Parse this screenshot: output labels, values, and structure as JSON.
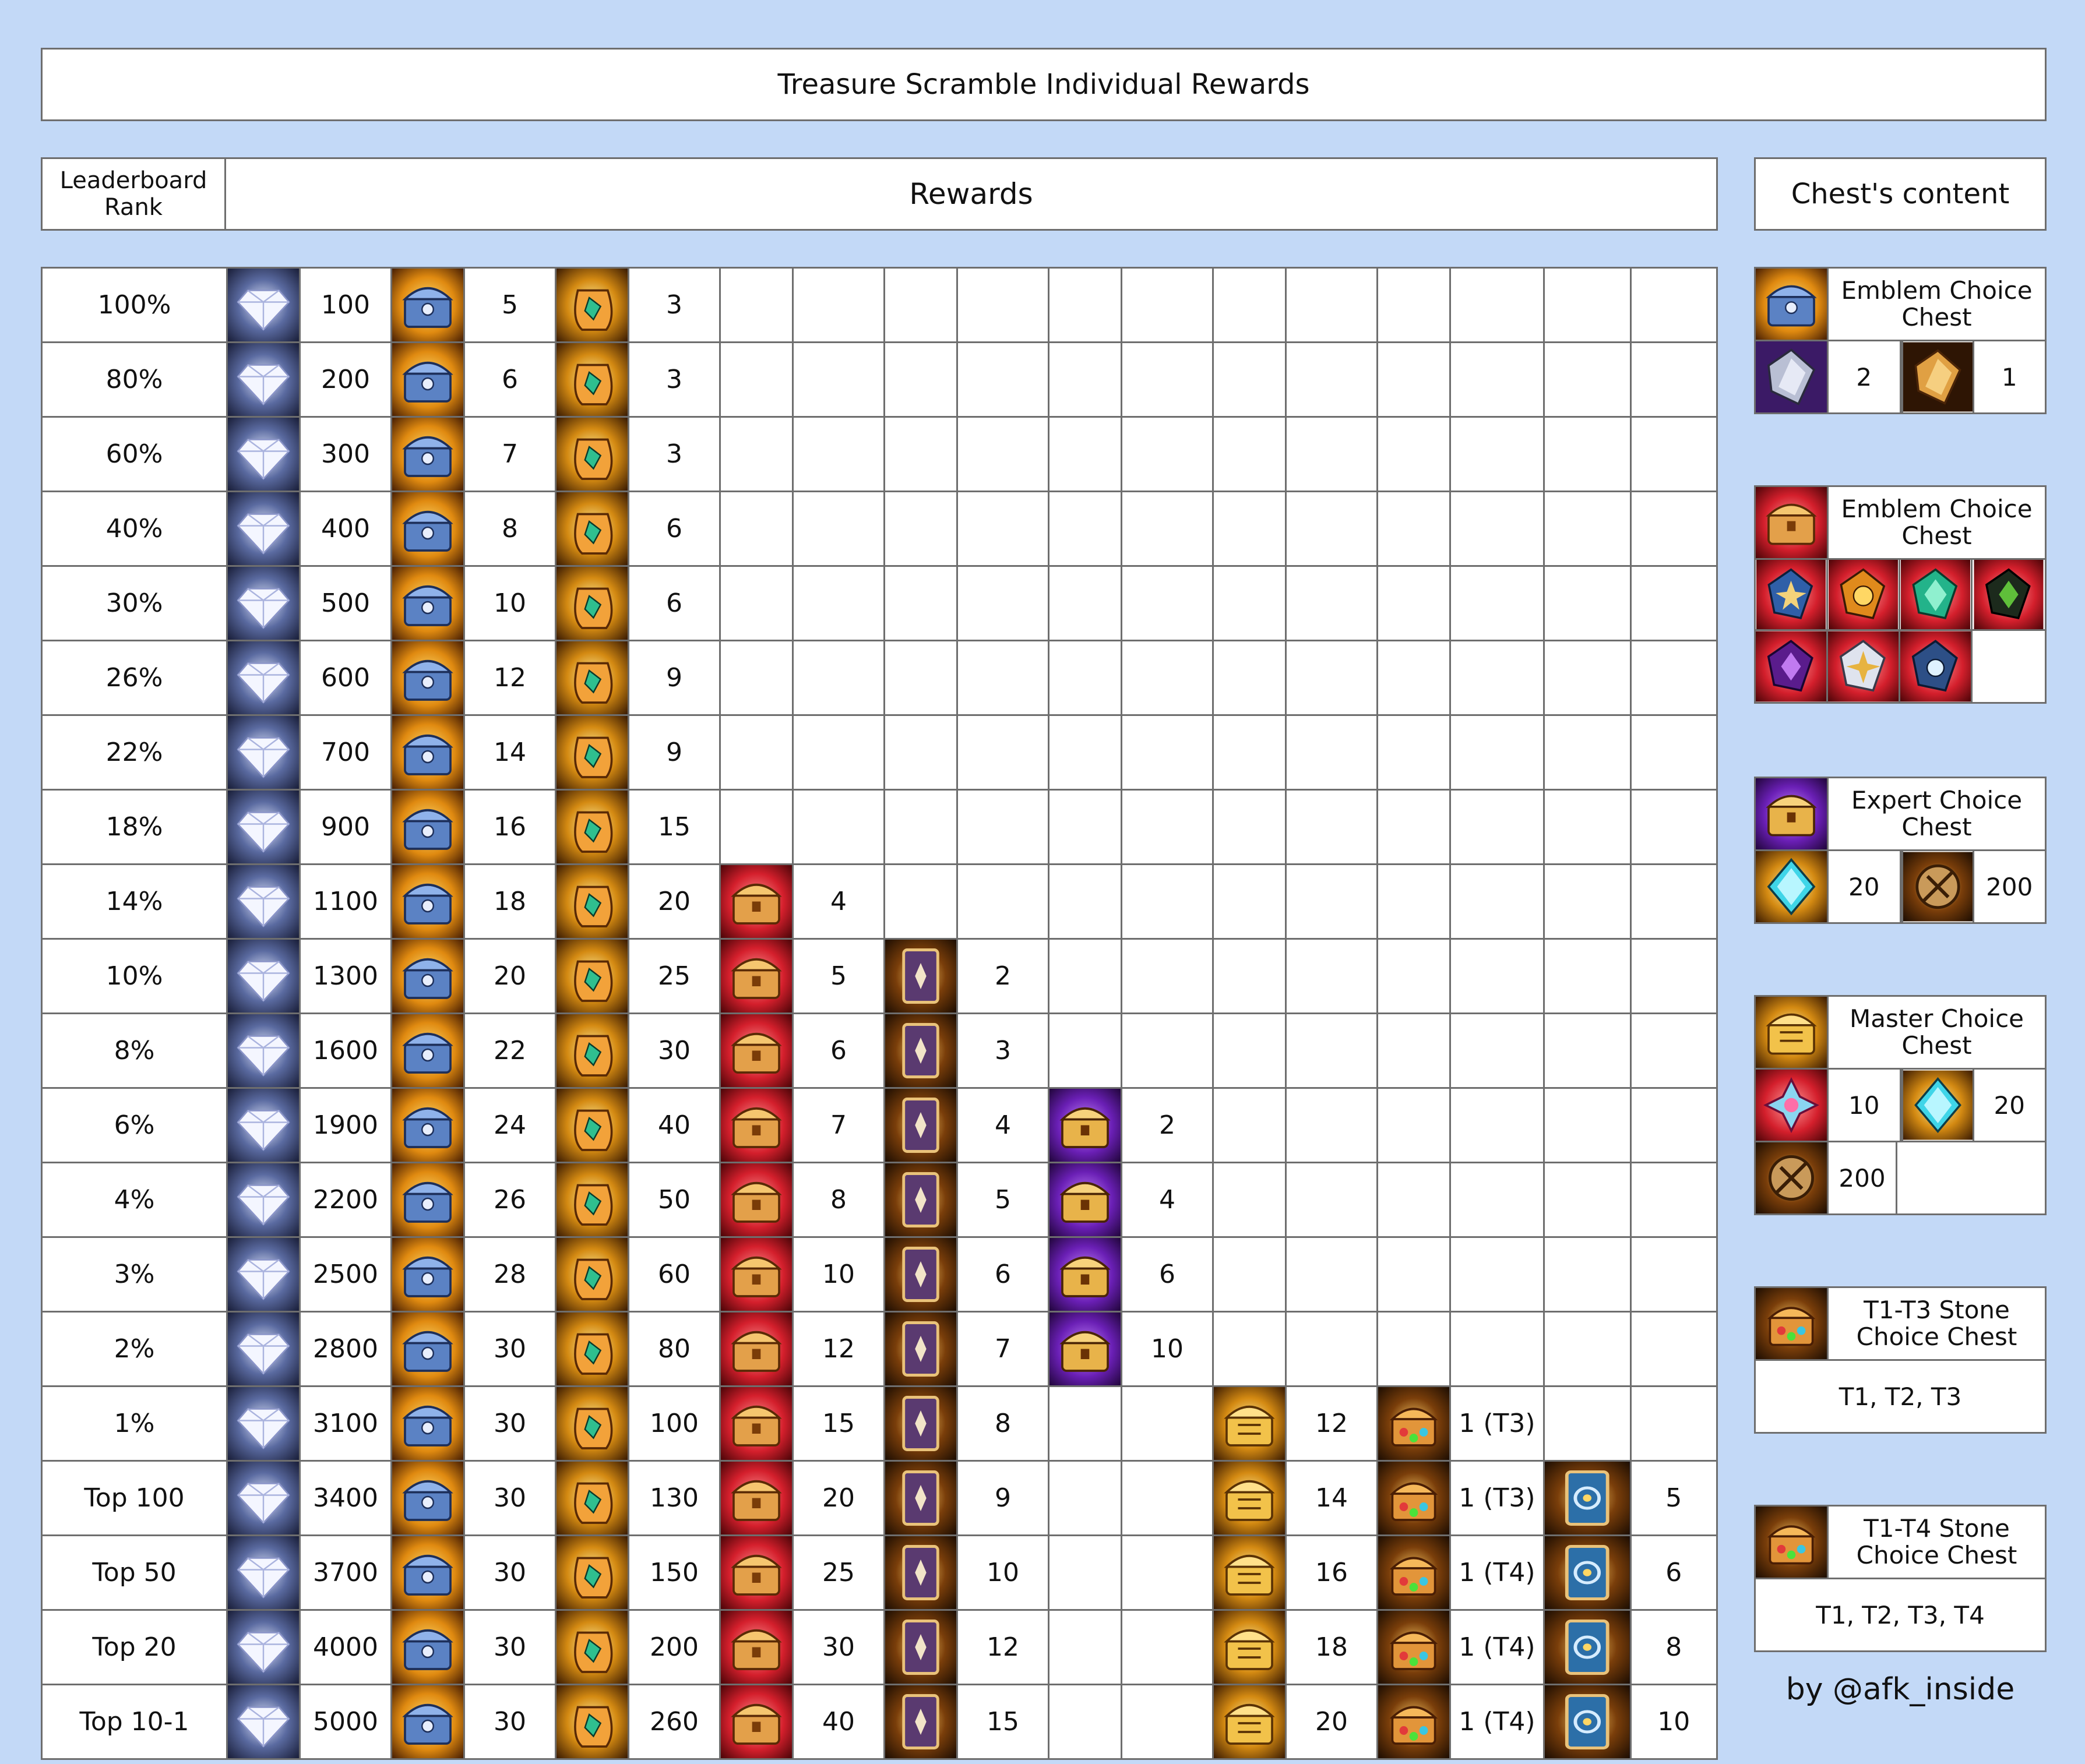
{
  "title": "Treasure Scramble Individual Rewards",
  "headers": {
    "rank": "Leaderboard Rank",
    "rewards": "Rewards",
    "chest_content": "Chest's content"
  },
  "icons": {
    "diamond": "diamond-icon",
    "emblem_chest_blue": "blue-emblem-chest-icon",
    "gold_pouch": "gold-emblem-pouch-icon",
    "emblem_chest_red": "red-emblem-chest-icon",
    "card": "summon-card-icon",
    "expert_chest": "purple-expert-chest-icon",
    "master_chest": "gold-master-chest-icon",
    "stone_chest": "stone-choice-chest-icon",
    "blue_card": "blue-card-icon"
  },
  "rows": [
    {
      "rank": "100%",
      "diamonds": "100",
      "blue_chest": "5",
      "pouch": "3",
      "red_chest": "",
      "card": "",
      "expert": "",
      "master": "",
      "stone": "",
      "blue_card": ""
    },
    {
      "rank": "80%",
      "diamonds": "200",
      "blue_chest": "6",
      "pouch": "3",
      "red_chest": "",
      "card": "",
      "expert": "",
      "master": "",
      "stone": "",
      "blue_card": ""
    },
    {
      "rank": "60%",
      "diamonds": "300",
      "blue_chest": "7",
      "pouch": "3",
      "red_chest": "",
      "card": "",
      "expert": "",
      "master": "",
      "stone": "",
      "blue_card": ""
    },
    {
      "rank": "40%",
      "diamonds": "400",
      "blue_chest": "8",
      "pouch": "6",
      "red_chest": "",
      "card": "",
      "expert": "",
      "master": "",
      "stone": "",
      "blue_card": ""
    },
    {
      "rank": "30%",
      "diamonds": "500",
      "blue_chest": "10",
      "pouch": "6",
      "red_chest": "",
      "card": "",
      "expert": "",
      "master": "",
      "stone": "",
      "blue_card": ""
    },
    {
      "rank": "26%",
      "diamonds": "600",
      "blue_chest": "12",
      "pouch": "9",
      "red_chest": "",
      "card": "",
      "expert": "",
      "master": "",
      "stone": "",
      "blue_card": ""
    },
    {
      "rank": "22%",
      "diamonds": "700",
      "blue_chest": "14",
      "pouch": "9",
      "red_chest": "",
      "card": "",
      "expert": "",
      "master": "",
      "stone": "",
      "blue_card": ""
    },
    {
      "rank": "18%",
      "diamonds": "900",
      "blue_chest": "16",
      "pouch": "15",
      "red_chest": "",
      "card": "",
      "expert": "",
      "master": "",
      "stone": "",
      "blue_card": ""
    },
    {
      "rank": "14%",
      "diamonds": "1100",
      "blue_chest": "18",
      "pouch": "20",
      "red_chest": "4",
      "card": "",
      "expert": "",
      "master": "",
      "stone": "",
      "blue_card": ""
    },
    {
      "rank": "10%",
      "diamonds": "1300",
      "blue_chest": "20",
      "pouch": "25",
      "red_chest": "5",
      "card": "2",
      "expert": "",
      "master": "",
      "stone": "",
      "blue_card": ""
    },
    {
      "rank": "8%",
      "diamonds": "1600",
      "blue_chest": "22",
      "pouch": "30",
      "red_chest": "6",
      "card": "3",
      "expert": "",
      "master": "",
      "stone": "",
      "blue_card": ""
    },
    {
      "rank": "6%",
      "diamonds": "1900",
      "blue_chest": "24",
      "pouch": "40",
      "red_chest": "7",
      "card": "4",
      "expert": "2",
      "master": "",
      "stone": "",
      "blue_card": ""
    },
    {
      "rank": "4%",
      "diamonds": "2200",
      "blue_chest": "26",
      "pouch": "50",
      "red_chest": "8",
      "card": "5",
      "expert": "4",
      "master": "",
      "stone": "",
      "blue_card": ""
    },
    {
      "rank": "3%",
      "diamonds": "2500",
      "blue_chest": "28",
      "pouch": "60",
      "red_chest": "10",
      "card": "6",
      "expert": "6",
      "master": "",
      "stone": "",
      "blue_card": ""
    },
    {
      "rank": "2%",
      "diamonds": "2800",
      "blue_chest": "30",
      "pouch": "80",
      "red_chest": "12",
      "card": "7",
      "expert": "10",
      "master": "",
      "stone": "",
      "blue_card": ""
    },
    {
      "rank": "1%",
      "diamonds": "3100",
      "blue_chest": "30",
      "pouch": "100",
      "red_chest": "15",
      "card": "8",
      "expert": "",
      "master": "12",
      "stone": "1 (T3)",
      "blue_card": ""
    },
    {
      "rank": "Top 100",
      "diamonds": "3400",
      "blue_chest": "30",
      "pouch": "130",
      "red_chest": "20",
      "card": "9",
      "expert": "",
      "master": "14",
      "stone": "1 (T3)",
      "blue_card": "5"
    },
    {
      "rank": "Top 50",
      "diamonds": "3700",
      "blue_chest": "30",
      "pouch": "150",
      "red_chest": "25",
      "card": "10",
      "expert": "",
      "master": "16",
      "stone": "1 (T4)",
      "blue_card": "6"
    },
    {
      "rank": "Top 20",
      "diamonds": "4000",
      "blue_chest": "30",
      "pouch": "200",
      "red_chest": "30",
      "card": "12",
      "expert": "",
      "master": "18",
      "stone": "1 (T4)",
      "blue_card": "8"
    },
    {
      "rank": "Top 10-1",
      "diamonds": "5000",
      "blue_chest": "30",
      "pouch": "260",
      "red_chest": "40",
      "card": "15",
      "expert": "",
      "master": "20",
      "stone": "1 (T4)",
      "blue_card": "10"
    }
  ],
  "chests": {
    "blue_emblem": {
      "title": "Emblem Choice Chest",
      "val1": "2",
      "val2": "1"
    },
    "red_emblem": {
      "title": "Emblem Choice Chest"
    },
    "expert": {
      "title": "Expert Choice Chest",
      "val1": "20",
      "val2": "200"
    },
    "master": {
      "title": "Master Choice Chest",
      "val1": "10",
      "val2": "20",
      "val3": "200"
    },
    "t1t3": {
      "title": "T1-T3 Stone Choice Chest",
      "content": "T1, T2, T3"
    },
    "t1t4": {
      "title": "T1-T4 Stone Choice Chest",
      "content": "T1, T2, T3, T4"
    }
  },
  "credit": "by @afk_inside"
}
